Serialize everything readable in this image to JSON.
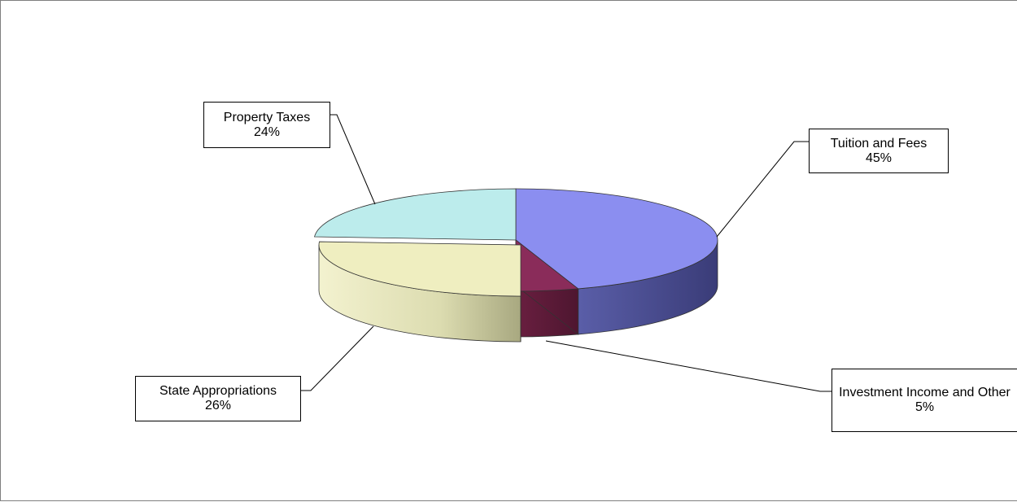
{
  "chart_data": {
    "type": "pie",
    "style": "3d-exploded-pie",
    "title": "",
    "legend": "none",
    "slices": [
      {
        "label": "Tuition and Fees",
        "value": 45,
        "value_label": "45%",
        "color": "#8b8ef0"
      },
      {
        "label": "Investment Income and Other",
        "value": 5,
        "value_label": "5%",
        "color": "#8a2c5a"
      },
      {
        "label": "State Appropriations",
        "value": 26,
        "value_label": "26%",
        "color": "#efeec0"
      },
      {
        "label": "Property Taxes",
        "value": 24,
        "value_label": "24%",
        "color": "#bcecec"
      }
    ]
  }
}
